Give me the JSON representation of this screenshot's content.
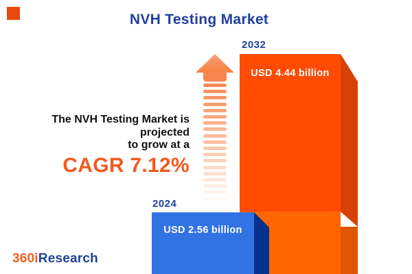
{
  "title": "NVH Testing Market",
  "annotation": {
    "line1": "The NVH Testing Market is projected",
    "line2": "to grow at a",
    "cagr": "CAGR 7.12%"
  },
  "chart": {
    "bars": [
      {
        "year": "2024",
        "value_label": "USD 2.56 billion"
      },
      {
        "year": "2032",
        "value_label": "USD 4.44 billion"
      }
    ]
  },
  "logo": {
    "prefix": "360i",
    "suffix": "Research"
  },
  "colors": {
    "title_blue": "#21409E",
    "annotation_black": "#101010",
    "cagr_orange": "#F2591E",
    "bar_2024_front": "#3173E4",
    "bar_2024_side": "#05308C",
    "bar_2032_front_upper": "#FF4B04",
    "bar_2032_front_lower": "#FF6602",
    "bar_2032_side_upper": "#D84103",
    "bar_2032_side_lower": "#E05402",
    "arrow_salmon": "#F8854F",
    "accent_square": "#E8490E",
    "logo_orange": "#F0611F",
    "logo_blue": "#20409A"
  },
  "chart_data": {
    "type": "bar",
    "categories": [
      "2024",
      "2032"
    ],
    "values": [
      2.56,
      4.44
    ],
    "unit": "USD billion",
    "value_labels": [
      "USD 2.56 billion",
      "USD 4.44 billion"
    ],
    "series_colors": [
      "#3173E4",
      "#FF5904"
    ],
    "title": "NVH Testing Market",
    "annotation": "The NVH Testing Market is projected to grow at a CAGR 7.12%",
    "cagr_percent": 7.12,
    "xlabel": "",
    "ylabel": "",
    "axes": "none",
    "grid": false,
    "legend_position": "none",
    "style": "3d-pictorial-bars-with-data-labels"
  }
}
